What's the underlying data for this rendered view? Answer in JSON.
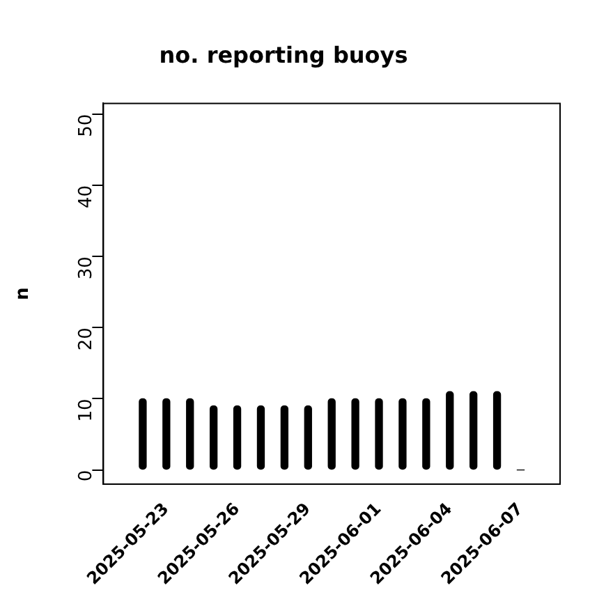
{
  "chart_data": {
    "type": "bar",
    "title": "no. reporting buoys",
    "ylabel": "n",
    "x": [
      "2025-05-22",
      "2025-05-23",
      "2025-05-24",
      "2025-05-25",
      "2025-05-26",
      "2025-05-27",
      "2025-05-28",
      "2025-05-29",
      "2025-05-30",
      "2025-05-31",
      "2025-06-01",
      "2025-06-02",
      "2025-06-03",
      "2025-06-04",
      "2025-06-05",
      "2025-06-06",
      "2025-06-07"
    ],
    "values": [
      10,
      10,
      10,
      9,
      9,
      9,
      9,
      9,
      10,
      10,
      10,
      10,
      10,
      11,
      11,
      11,
      0
    ],
    "color": "#000000",
    "xlim": [
      "2025-05-20T08:00",
      "2025-06-08T16:00"
    ],
    "xticks": [
      "2025-05-23",
      "2025-05-26",
      "2025-05-29",
      "2025-06-01",
      "2025-06-04",
      "2025-06-07"
    ],
    "ylim": [
      -2,
      51.5
    ],
    "yticks": [
      0,
      10,
      20,
      30,
      40,
      50
    ],
    "grid": false,
    "legend": false
  }
}
